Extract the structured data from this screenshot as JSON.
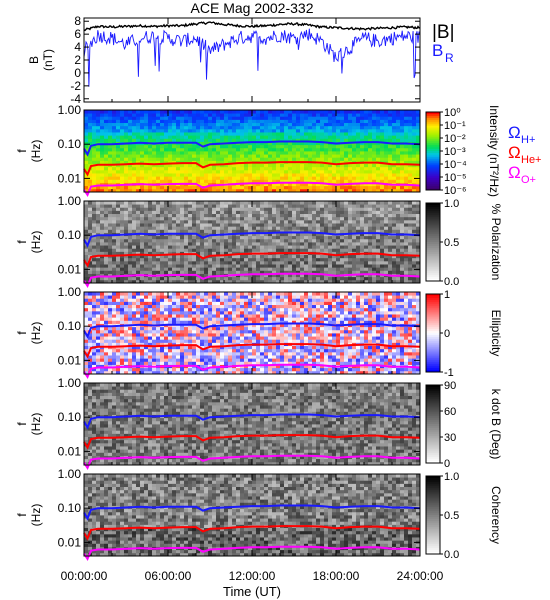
{
  "title": "ACE Mag 2002-332",
  "xlabel": "Time (UT)",
  "x_ticks": [
    "00:00:00",
    "06:00:00",
    "12:00:00",
    "18:00:00",
    "24:00:00"
  ],
  "chart_data": [
    {
      "type": "line",
      "title": "ACE Mag 2002-332",
      "ylabel": "B (nT)",
      "ylim": [
        -4.5,
        8.5
      ],
      "y_ticks": [
        "8",
        "6",
        "4",
        "2",
        "0",
        "-2",
        "-4"
      ],
      "xlim": [
        0,
        24
      ],
      "legend_placement": "right",
      "series": [
        {
          "name": "|B|",
          "color": "#000000",
          "x": [
            0,
            1,
            2,
            3,
            4,
            5,
            6,
            7,
            8,
            9,
            10,
            11,
            12,
            13,
            14,
            15,
            16,
            17,
            18,
            19,
            20,
            21,
            22,
            23,
            24
          ],
          "y": [
            6.6,
            7.2,
            7.1,
            7.2,
            7.3,
            7.2,
            7.3,
            7.3,
            7.6,
            7.8,
            7.5,
            7.3,
            7.2,
            7.3,
            7.5,
            7.6,
            7.4,
            7.1,
            7.0,
            6.9,
            6.8,
            6.9,
            7.0,
            7.1,
            7.0
          ]
        },
        {
          "name": "B",
          "subscript": "R",
          "color": "#1a1aff",
          "x": [
            0,
            1,
            2,
            3,
            4,
            5,
            6,
            7,
            8,
            9,
            10,
            11,
            12,
            13,
            14,
            15,
            16,
            17,
            18,
            19,
            20,
            21,
            22,
            23,
            24
          ],
          "y": [
            3.5,
            6.0,
            5.5,
            4.5,
            5.5,
            5.8,
            5.5,
            5.0,
            5.5,
            3.5,
            4.5,
            5.5,
            5.8,
            5.5,
            6.0,
            5.5,
            6.2,
            5.0,
            2.5,
            4.0,
            5.5,
            5.0,
            5.5,
            5.8,
            5.6
          ]
        }
      ]
    },
    {
      "type": "heatmap",
      "ylabel": "f (Hz)",
      "yscale": "log",
      "ylim": [
        0.004,
        1.0
      ],
      "y_ticks": [
        "1.00",
        "0.10",
        "0.01"
      ],
      "colorbar": {
        "label": "Intensity (nT²/Hz)",
        "ticks": [
          "10⁰",
          "10⁻¹",
          "10⁻²",
          "10⁻³",
          "10⁻⁴",
          "10⁻⁵",
          "10⁻⁶"
        ],
        "colormap": "rainbow"
      },
      "legend": [
        {
          "name": "Ω",
          "subscript": "H+",
          "color": "#1a1aff"
        },
        {
          "name": "Ω",
          "subscript": "He+",
          "color": "#ff0000"
        },
        {
          "name": "Ω",
          "subscript": "O+",
          "color": "#ff00ff"
        }
      ]
    },
    {
      "type": "heatmap",
      "ylabel": "f (Hz)",
      "yscale": "log",
      "ylim": [
        0.004,
        1.0
      ],
      "y_ticks": [
        "1.00",
        "0.10",
        "0.01"
      ],
      "colorbar": {
        "label": "% Polarization",
        "ticks": [
          "1.0",
          "0.5",
          "0.0"
        ],
        "colormap": "gray"
      }
    },
    {
      "type": "heatmap",
      "ylabel": "f (Hz)",
      "yscale": "log",
      "ylim": [
        0.004,
        1.0
      ],
      "y_ticks": [
        "1.00",
        "0.10",
        "0.01"
      ],
      "colorbar": {
        "label": "Ellipticity",
        "ticks": [
          "1",
          "0",
          "-1"
        ],
        "colormap": "blue-white-red"
      }
    },
    {
      "type": "heatmap",
      "ylabel": "f (Hz)",
      "yscale": "log",
      "ylim": [
        0.004,
        1.0
      ],
      "y_ticks": [
        "1.00",
        "0.10",
        "0.01"
      ],
      "colorbar": {
        "label": "k dot B (Deg)",
        "ticks": [
          "90",
          "60",
          "30",
          "0"
        ],
        "colormap": "gray"
      }
    },
    {
      "type": "heatmap",
      "ylabel": "f (Hz)",
      "yscale": "log",
      "ylim": [
        0.004,
        1.0
      ],
      "y_ticks": [
        "1.00",
        "0.10",
        "0.01"
      ],
      "colorbar": {
        "label": "Coherency",
        "ticks": [
          "1.0",
          "0.5",
          "0.0"
        ],
        "colormap": "gray"
      }
    }
  ],
  "gyrofrequency_lines": {
    "x": [
      0,
      0.25,
      0.5,
      1,
      2,
      3,
      4,
      5,
      6,
      7,
      8,
      8.5,
      9,
      10,
      11,
      12,
      13,
      14,
      15,
      16,
      17,
      18,
      19,
      20,
      21,
      22,
      23,
      24
    ],
    "H+": [
      0.075,
      0.05,
      0.09,
      0.1,
      0.1,
      0.105,
      0.11,
      0.105,
      0.11,
      0.11,
      0.11,
      0.085,
      0.1,
      0.105,
      0.11,
      0.115,
      0.115,
      0.12,
      0.12,
      0.12,
      0.115,
      0.105,
      0.11,
      0.115,
      0.115,
      0.105,
      0.105,
      0.1
    ],
    "He+": [
      0.019,
      0.013,
      0.023,
      0.025,
      0.025,
      0.026,
      0.027,
      0.026,
      0.027,
      0.028,
      0.028,
      0.021,
      0.025,
      0.026,
      0.028,
      0.029,
      0.029,
      0.03,
      0.03,
      0.03,
      0.029,
      0.026,
      0.028,
      0.029,
      0.029,
      0.026,
      0.026,
      0.025
    ],
    "O+": [
      0.0047,
      0.0033,
      0.0057,
      0.0062,
      0.0062,
      0.0065,
      0.0068,
      0.0065,
      0.0068,
      0.0069,
      0.0069,
      0.0053,
      0.0062,
      0.0065,
      0.0069,
      0.0072,
      0.0072,
      0.0075,
      0.0075,
      0.0075,
      0.0072,
      0.0065,
      0.0069,
      0.0072,
      0.0072,
      0.0065,
      0.0065,
      0.0062
    ]
  }
}
